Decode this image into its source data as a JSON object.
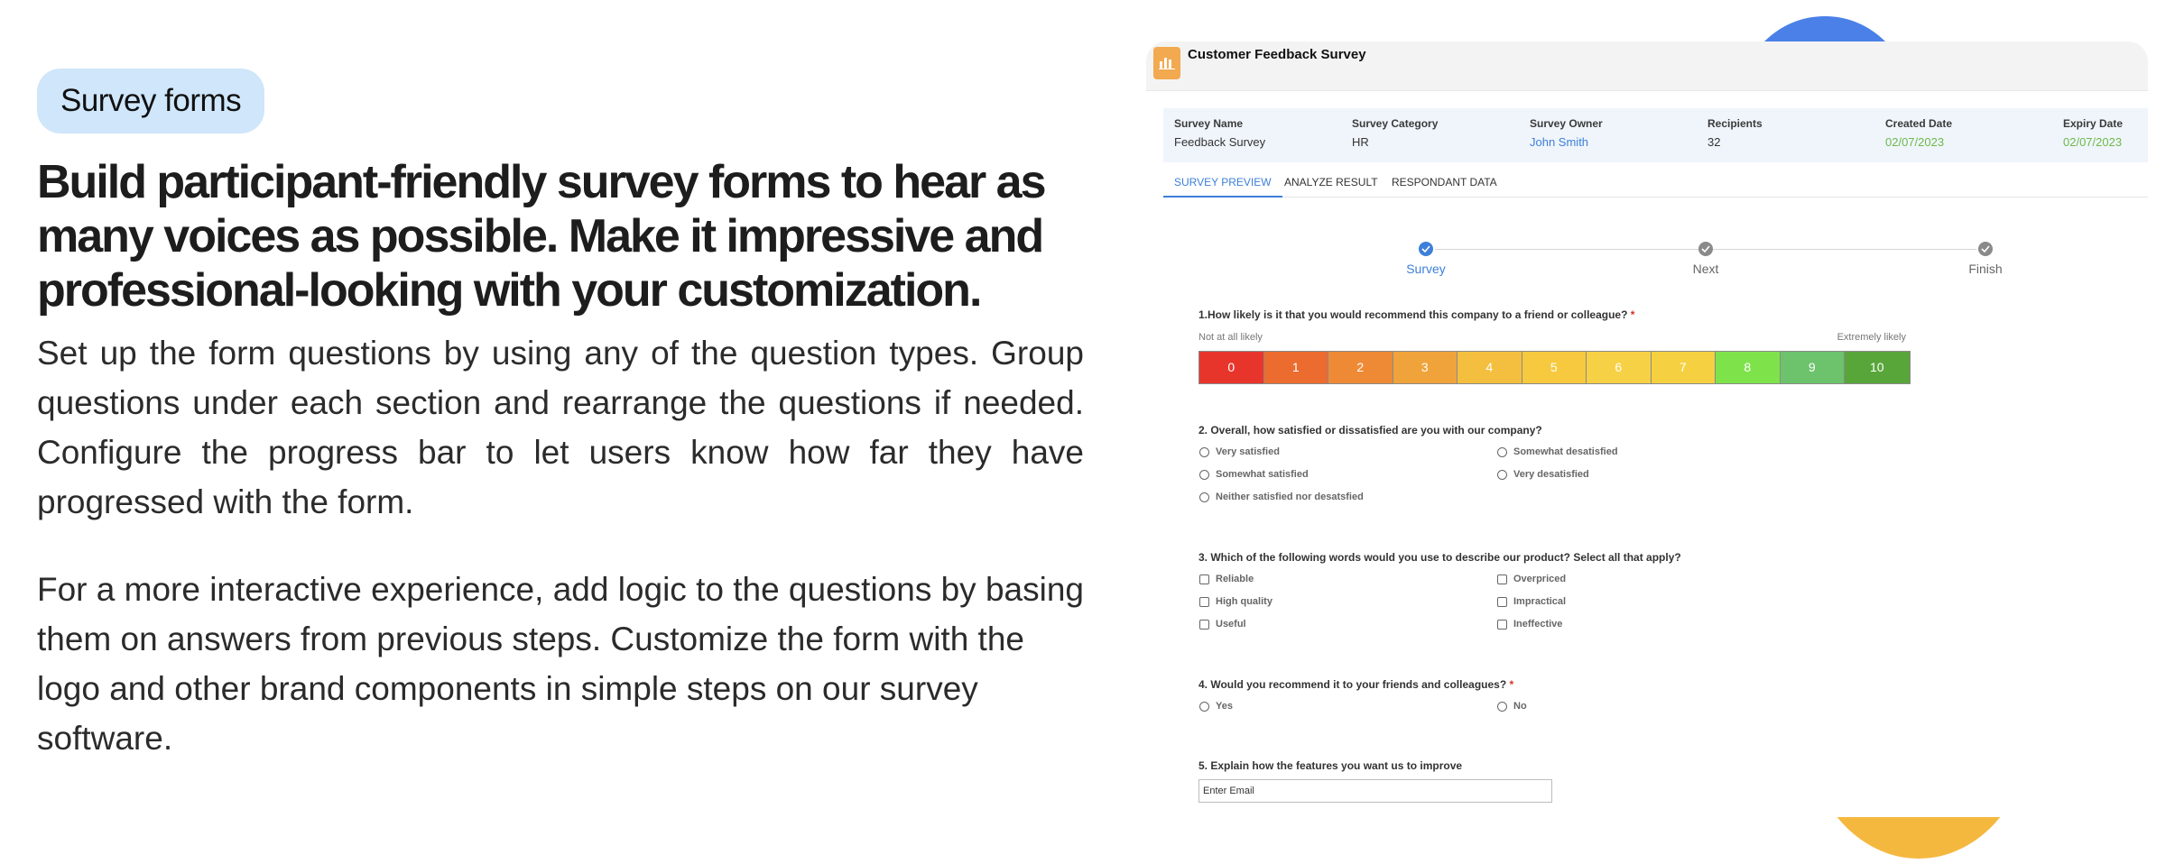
{
  "left": {
    "pill": "Survey forms",
    "headline": "Build participant-friendly survey forms to hear as many voices as possible. Make it impressive and professional-looking with your customization.",
    "para1": "Set up the form questions by using any of the question types. Group questions under each section and rearrange the questions if needed. Configure the progress bar to let users know how far they have progressed with the form.",
    "para2": "For a more interactive experience, add logic to the questions by basing them on answers from previous steps. Customize the form with the logo and other brand components in simple steps on our survey software."
  },
  "survey": {
    "title": "Customer Feedback Survey",
    "meta": [
      {
        "label": "Survey Name",
        "value": "Feedback Survey"
      },
      {
        "label": "Survey Category",
        "value": "HR"
      },
      {
        "label": "Survey Owner",
        "value": "John Smith"
      },
      {
        "label": "Recipients",
        "value": "32"
      },
      {
        "label": "Created Date",
        "value": "02/07/2023"
      },
      {
        "label": "Expiry Date",
        "value": "02/07/2023"
      }
    ],
    "tabs": [
      "SURVEY PREVIEW",
      "ANALYZE RESULT",
      "RESPONDANT DATA"
    ],
    "steps": [
      "Survey",
      "Next",
      "Finish"
    ],
    "q1": {
      "text": "1.How likely is it that you would recommend this company to a friend or colleague?",
      "required": "*",
      "low": "Not at all likely",
      "high": "Extremely likely",
      "scale": [
        "0",
        "1",
        "2",
        "3",
        "4",
        "5",
        "6",
        "7",
        "8",
        "9",
        "10"
      ]
    },
    "q2": {
      "text": "2. Overall, how satisfied or dissatisfied are you with our company?",
      "options": [
        "Very satisfied",
        "Somewhat desatisfied",
        "Somewhat satisfied",
        "Very desatisfied",
        "Neither satisfied nor desatsfied"
      ]
    },
    "q3": {
      "text": "3. Which of the following words would you use to describe our product? Select all that apply?",
      "options": [
        "Reliable",
        "Overpriced",
        "High quality",
        "Impractical",
        "Useful",
        "Ineffective"
      ]
    },
    "q4": {
      "text": "4. Would you recommend it to your friends and colleagues?",
      "required": "*",
      "options": [
        "Yes",
        "No"
      ]
    },
    "q5": {
      "text": "5. Explain how the features you want us to improve",
      "placeholder": "Enter Email"
    }
  },
  "colors": {
    "accent": "#3d7fd9",
    "scale": [
      "#e8352c",
      "#ec6b2e",
      "#ee8a35",
      "#f0a33a",
      "#f4bf3e",
      "#f6c93f",
      "#f7d145",
      "#f5d040",
      "#7ee34b",
      "#6cc36c",
      "#58a63a"
    ]
  }
}
